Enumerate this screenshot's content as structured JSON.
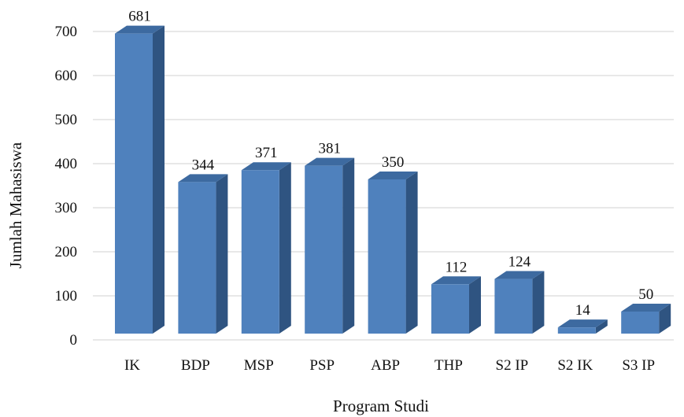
{
  "chart_data": {
    "type": "bar",
    "style": "3d-column",
    "title": "",
    "xlabel": "Program Studi",
    "ylabel": "Jumlah  Mahasiswa",
    "categories": [
      "IK",
      "BDP",
      "MSP",
      "PSP",
      "ABP",
      "THP",
      "S2 IP",
      "S2 IK",
      "S3 IP"
    ],
    "values": [
      681,
      344,
      371,
      381,
      350,
      112,
      124,
      14,
      50
    ],
    "value_labels": [
      "681",
      "344",
      "371",
      "381",
      "350",
      "112",
      "124",
      "14",
      "50"
    ],
    "yticks": [
      "0",
      "100",
      "200",
      "300",
      "400",
      "500",
      "600",
      "700"
    ],
    "ytick_values": [
      0,
      100,
      200,
      300,
      400,
      500,
      600,
      700
    ],
    "ylim": [
      0,
      700
    ],
    "grid": true,
    "legend": "none",
    "colors": {
      "bar_front": "#4f81bd",
      "bar_side": "#2f5481",
      "bar_top": "#3d6aa0",
      "grid": "#d9d9d9",
      "text": "#111111"
    }
  }
}
